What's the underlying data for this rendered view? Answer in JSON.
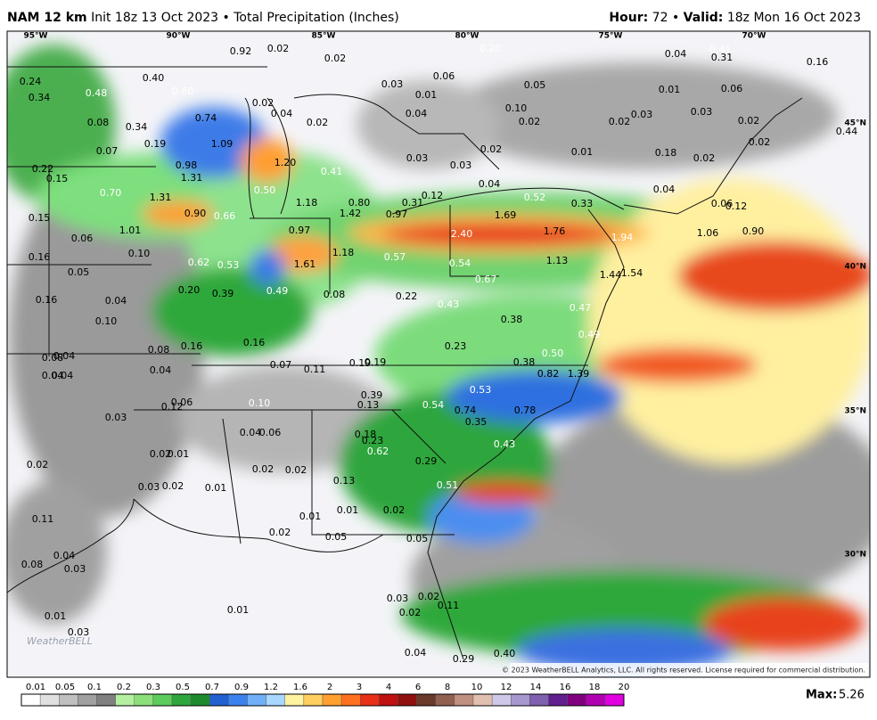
{
  "header": {
    "model": "NAM 12 km",
    "description": "Init 18z 13 Oct 2023 • Total Precipitation (Inches)",
    "hour_label": "Hour:",
    "hour": "72",
    "separator": "•",
    "valid_label": "Valid:",
    "valid": "18z Mon 16 Oct 2023"
  },
  "longitude_labels": [
    "95°W",
    "90°W",
    "85°W",
    "80°W",
    "75°W",
    "70°W"
  ],
  "latitude_labels": [
    "45°N",
    "40°N",
    "35°N",
    "30°N"
  ],
  "point_labels": [
    "0.24",
    "0.34",
    "0.48",
    "0.40",
    "0.60",
    "0.92",
    "0.02",
    "0.02",
    "0.20",
    "0.04",
    "0.41",
    "0.31",
    "0.16",
    "0.03",
    "0.06",
    "0.01",
    "0.05",
    "0.01",
    "0.06",
    "0.08",
    "0.34",
    "0.19",
    "0.74",
    "0.02",
    "0.04",
    "0.02",
    "0.04",
    "0.10",
    "0.02",
    "0.02",
    "0.03",
    "0.03",
    "0.02",
    "0.44",
    "0.07",
    "1.09",
    "1.20",
    "0.03",
    "0.03",
    "0.02",
    "0.01",
    "0.18",
    "0.02",
    "0.02",
    "0.22",
    "0.15",
    "0.98",
    "1.31",
    "0.41",
    "0.04",
    "0.04",
    "0.70",
    "1.31",
    "0.50",
    "1.18",
    "0.80",
    "0.31",
    "0.12",
    "0.52",
    "0.33",
    "0.06",
    "0.12",
    "0.15",
    "0.90",
    "0.66",
    "1.42",
    "0.97",
    "1.69",
    "0.06",
    "1.01",
    "0.97",
    "2.40",
    "1.76",
    "1.94",
    "1.06",
    "0.90",
    "0.16",
    "0.10",
    "0.62",
    "0.53",
    "1.61",
    "1.18",
    "0.57",
    "0.54",
    "1.13",
    "0.05",
    "1.44",
    "1.54",
    "0.67",
    "0.20",
    "0.39",
    "0.49",
    "0.08",
    "0.22",
    "0.16",
    "0.04",
    "0.43",
    "0.47",
    "0.10",
    "0.38",
    "0.49",
    "0.16",
    "0.23",
    "0.08",
    "0.16",
    "0.04",
    "0.08",
    "0.50",
    "0.38",
    "0.07",
    "0.11",
    "0.19",
    "0.19",
    "0.04",
    "0.04",
    "0.04",
    "0.82",
    "1.39",
    "0.39",
    "0.53",
    "0.06",
    "0.12",
    "0.10",
    "0.13",
    "0.54",
    "0.74",
    "0.78",
    "0.35",
    "0.03",
    "0.04",
    "0.06",
    "0.18",
    "0.23",
    "0.43",
    "0.62",
    "0.02",
    "0.01",
    "0.02",
    "0.02",
    "0.02",
    "0.29",
    "0.13",
    "0.03",
    "0.02",
    "0.01",
    "0.51",
    "0.11",
    "0.01",
    "0.02",
    "0.01",
    "0.02",
    "0.05",
    "0.05",
    "0.04",
    "0.08",
    "0.03",
    "0.03",
    "0.02",
    "0.02",
    "0.11",
    "0.01",
    "0.01",
    "0.03",
    "0.04",
    "0.29",
    "0.40"
  ],
  "logo": "WeatherBELL",
  "copyright": "© 2023 WeatherBELL Analytics, LLC. All rights reserved. License required for commercial distribution.",
  "scale_labels": [
    "0.01",
    "0.05",
    "0.1",
    "0.2",
    "0.3",
    "0.5",
    "0.7",
    "0.9",
    "1.2",
    "1.6",
    "2",
    "3",
    "4",
    "6",
    "8",
    "10",
    "12",
    "14",
    "16",
    "18",
    "20"
  ],
  "max_label": "Max:",
  "max_value": "5.26"
}
